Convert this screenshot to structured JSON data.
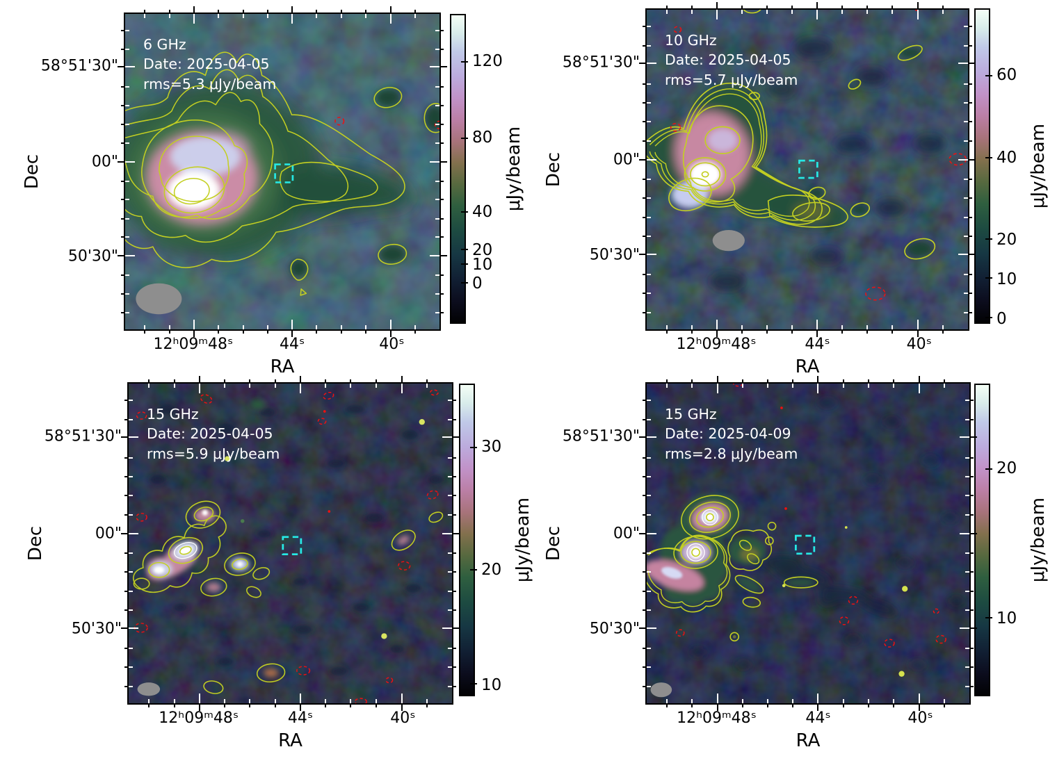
{
  "figure": {
    "background": "#ffffff",
    "colormap": "cubehelix",
    "positive_contour_color": "#c3cf22",
    "negative_contour_color": "#ee1111",
    "aperture_marker_color": "#26e8e4",
    "beam_color": "#8e8e8e"
  },
  "axes_shared": {
    "x_label": "RA",
    "y_label": "Dec",
    "x_major": [
      {
        "label": "12ʰ09ᵐ48ˢ",
        "f": 0.219
      },
      {
        "label": "44ˢ",
        "f": 0.531
      },
      {
        "label": "40ˢ",
        "f": 0.845
      }
    ],
    "x_minor": [
      0.063,
      0.141,
      0.297,
      0.375,
      0.453,
      0.609,
      0.687,
      0.765,
      0.923
    ],
    "y_major": [
      {
        "label": "58°51'30\"",
        "f": 0.168
      },
      {
        "label": "00\"",
        "f": 0.47
      },
      {
        "label": "50'30\"",
        "f": 0.766
      }
    ],
    "y_minor": [
      0.053,
      0.112,
      0.232,
      0.291,
      0.351,
      0.41,
      0.53,
      0.589,
      0.649,
      0.708,
      0.828,
      0.887,
      0.947
    ]
  },
  "panels": [
    {
      "frequency": "6 GHz",
      "date_line": "Date: 2025-04-05",
      "rms_line": "rms=5.3 μJy/beam",
      "colorbar": {
        "label": "μJy/beam",
        "ticks": [
          {
            "label": "120",
            "f": 0.152
          },
          {
            "label": "80",
            "f": 0.4
          },
          {
            "label": "40",
            "f": 0.64
          },
          {
            "label": "20",
            "f": 0.762
          },
          {
            "label": "10",
            "f": 0.81
          },
          {
            "label": "0",
            "f": 0.871
          }
        ]
      }
    },
    {
      "frequency": "10 GHz",
      "date_line": "Date: 2025-04-05",
      "rms_line": "rms=5.7 μJy/beam",
      "colorbar": {
        "label": "μJy/beam",
        "ticks": [
          {
            "label": "60",
            "f": 0.211
          },
          {
            "label": "40",
            "f": 0.473
          },
          {
            "label": "20",
            "f": 0.733
          },
          {
            "label": "10",
            "f": 0.858
          },
          {
            "label": "0",
            "f": 0.985
          }
        ]
      }
    },
    {
      "frequency": "15 GHz",
      "date_line": "Date: 2025-04-05",
      "rms_line": "rms=5.9 μJy/beam",
      "colorbar": {
        "label": "μJy/beam",
        "ticks": [
          {
            "label": "30",
            "f": 0.202
          },
          {
            "label": "20",
            "f": 0.596
          },
          {
            "label": "10",
            "f": 0.964
          }
        ]
      }
    },
    {
      "frequency": "15 GHz",
      "date_line": "Date: 2025-04-09",
      "rms_line": "rms=2.8 μJy/beam",
      "colorbar": {
        "label": "μJy/beam",
        "ticks": [
          {
            "label": "20",
            "f": 0.271
          },
          {
            "label": "10",
            "f": 0.751
          }
        ]
      }
    }
  ],
  "chart_data": [
    {
      "type": "heatmap",
      "panel": "top-left",
      "title": "6 GHz",
      "frequency_ghz": 6,
      "date": "2025-04-05",
      "rms_ujy_per_beam": 5.3,
      "colorbar_label": "μJy/beam",
      "colorbar_ticks": [
        120,
        80,
        40,
        20,
        10,
        0
      ],
      "x_axis": {
        "label": "RA",
        "ticks": [
          "12h09m48s",
          "44s",
          "40s"
        ]
      },
      "y_axis": {
        "label": "Dec",
        "ticks": [
          "58°51'30\"",
          "00\"",
          "50'30\""
        ]
      },
      "features": {
        "positive_contours": "yellow solid, 7 nested levels",
        "negative_contours": "red dashed",
        "aperture_marker": "cyan dashed square near field center",
        "beam": "grey filled ellipse lower-left",
        "morphology": "bright extended source with white core east, tail extending west"
      }
    },
    {
      "type": "heatmap",
      "panel": "top-right",
      "title": "10 GHz",
      "frequency_ghz": 10,
      "date": "2025-04-05",
      "rms_ujy_per_beam": 5.7,
      "colorbar_label": "μJy/beam",
      "colorbar_ticks": [
        60,
        40,
        20,
        10,
        0
      ],
      "x_axis": {
        "label": "RA",
        "ticks": [
          "12h09m48s",
          "44s",
          "40s"
        ]
      },
      "y_axis": {
        "label": "Dec",
        "ticks": [
          "58°51'30\"",
          "00\"",
          "50'30\""
        ]
      },
      "features": {
        "positive_contours": "yellow solid",
        "negative_contours": "red dashed",
        "aperture_marker": "cyan dashed square near field center",
        "beam": "grey filled ellipse",
        "morphology": "compact bright core east with short tail, scattered faint blobs"
      }
    },
    {
      "type": "heatmap",
      "panel": "bottom-left",
      "title": "15 GHz",
      "frequency_ghz": 15,
      "date": "2025-04-05",
      "rms_ujy_per_beam": 5.9,
      "colorbar_label": "μJy/beam",
      "colorbar_ticks": [
        30,
        20,
        10
      ],
      "x_axis": {
        "label": "RA",
        "ticks": [
          "12h09m48s",
          "44s",
          "40s"
        ]
      },
      "y_axis": {
        "label": "Dec",
        "ticks": [
          "58°51'30\"",
          "00\"",
          "50'30\""
        ]
      },
      "features": {
        "positive_contours": "yellow solid around compact knots",
        "negative_contours": "red dashed, many small",
        "aperture_marker": "cyan dashed square near field center",
        "beam": "small grey ellipse lower-left",
        "morphology": "chain of compact knots north-east, mostly empty field"
      }
    },
    {
      "type": "heatmap",
      "panel": "bottom-right",
      "title": "15 GHz",
      "frequency_ghz": 15,
      "date": "2025-04-09",
      "rms_ujy_per_beam": 2.8,
      "colorbar_label": "μJy/beam",
      "colorbar_ticks": [
        20,
        10
      ],
      "x_axis": {
        "label": "RA",
        "ticks": [
          "12h09m48s",
          "44s",
          "40s"
        ]
      },
      "y_axis": {
        "label": "Dec",
        "ticks": [
          "58°51'30\"",
          "00\"",
          "50'30\""
        ]
      },
      "features": {
        "positive_contours": "yellow solid, two bright multi-ring knots",
        "negative_contours": "red dashed",
        "aperture_marker": "cyan dashed square near field center",
        "beam": "small grey ellipse lower-left",
        "morphology": "two bright compact knots with pink tail south-west"
      }
    }
  ]
}
